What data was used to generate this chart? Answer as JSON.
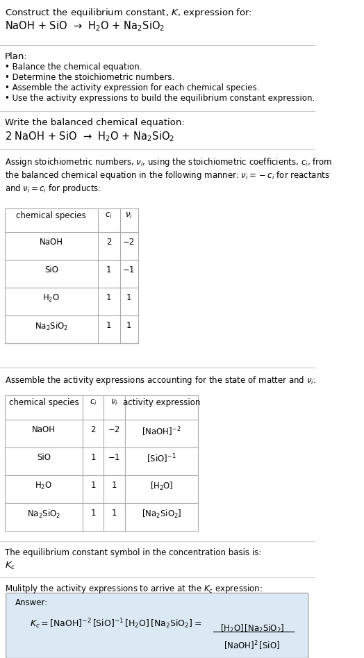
{
  "title_line1": "Construct the equilibrium constant, $K$, expression for:",
  "title_line2": "NaOH + SiO  →  H$_2$O + Na$_2$SiO$_2$",
  "plan_header": "Plan:",
  "plan_items": [
    "• Balance the chemical equation.",
    "• Determine the stoichiometric numbers.",
    "• Assemble the activity expression for each chemical species.",
    "• Use the activity expressions to build the equilibrium constant expression."
  ],
  "balanced_header": "Write the balanced chemical equation:",
  "balanced_eq": "2 NaOH + SiO  →  H$_2$O + Na$_2$SiO$_2$",
  "stoich_intro": "Assign stoichiometric numbers, $\\nu_i$, using the stoichiometric coefficients, $c_i$, from\nthe balanced chemical equation in the following manner: $\\nu_i = -c_i$ for reactants\nand $\\nu_i = c_i$ for products:",
  "table1_headers": [
    "chemical species",
    "$c_i$",
    "$\\nu_i$"
  ],
  "table1_rows": [
    [
      "NaOH",
      "2",
      "−2"
    ],
    [
      "SiO",
      "1",
      "−1"
    ],
    [
      "H$_2$O",
      "1",
      "1"
    ],
    [
      "Na$_2$SiO$_2$",
      "1",
      "1"
    ]
  ],
  "activity_intro": "Assemble the activity expressions accounting for the state of matter and $\\nu_i$:",
  "table2_headers": [
    "chemical species",
    "$c_i$",
    "$\\nu_i$",
    "activity expression"
  ],
  "table2_rows": [
    [
      "NaOH",
      "2",
      "−2",
      "[NaOH]$^{-2}$"
    ],
    [
      "SiO",
      "1",
      "−1",
      "[SiO]$^{-1}$"
    ],
    [
      "H$_2$O",
      "1",
      "1",
      "[H$_2$O]"
    ],
    [
      "Na$_2$SiO$_2$",
      "1",
      "1",
      "[Na$_2$SiO$_2$]"
    ]
  ],
  "kc_symbol_text": "The equilibrium constant symbol in the concentration basis is:",
  "kc_symbol": "$K_c$",
  "multiply_text": "Mulitply the activity expressions to arrive at the $K_c$ expression:",
  "answer_label": "Answer:",
  "bg_color": "#ffffff",
  "table_bg": "#ffffff",
  "answer_box_color": "#dce9f5",
  "text_color": "#000000",
  "separator_color": "#cccccc",
  "table_border_color": "#aaaaaa",
  "font_size": 9.5,
  "small_font": 8.5
}
